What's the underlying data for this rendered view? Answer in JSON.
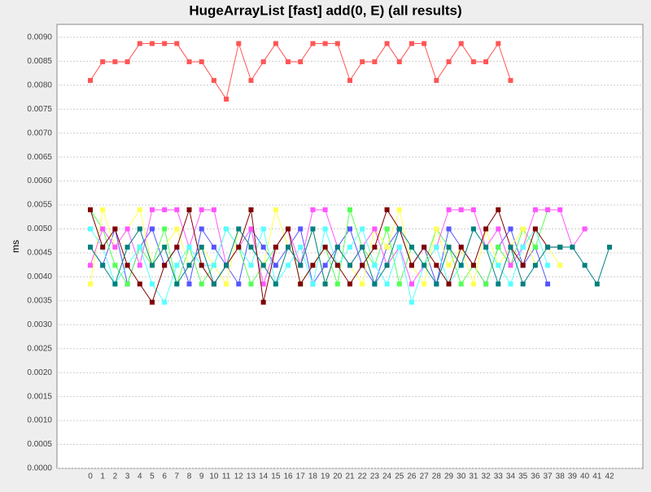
{
  "chart_data": {
    "type": "line",
    "title": "HugeArrayList [fast] add(0, E) (all results)",
    "y_label": "ms",
    "categories": [
      "0",
      "1",
      "2",
      "3",
      "4",
      "5",
      "6",
      "7",
      "8",
      "9",
      "10",
      "11",
      "12",
      "13",
      "14",
      "15",
      "16",
      "17",
      "18",
      "19",
      "20",
      "21",
      "22",
      "23",
      "24",
      "25",
      "26",
      "27",
      "28",
      "29",
      "30",
      "31",
      "32",
      "33",
      "34",
      "35",
      "36",
      "37",
      "38",
      "39",
      "40",
      "41",
      "42"
    ],
    "ylim": [
      0,
      0.00927
    ],
    "yticks": [
      {
        "value": 0,
        "label": "0.0000"
      },
      {
        "value": 0.0005,
        "label": "0.0005"
      },
      {
        "value": 0.001,
        "label": "0.0010"
      },
      {
        "value": 0.0015,
        "label": "0.0015"
      },
      {
        "value": 0.002,
        "label": "0.0020"
      },
      {
        "value": 0.0025,
        "label": "0.0025"
      },
      {
        "value": 0.003,
        "label": "0.0030"
      },
      {
        "value": 0.0035,
        "label": "0.0035"
      },
      {
        "value": 0.004,
        "label": "0.0040"
      },
      {
        "value": 0.0045,
        "label": "0.0045"
      },
      {
        "value": 0.005,
        "label": "0.0050"
      },
      {
        "value": 0.0055,
        "label": "0.0055"
      },
      {
        "value": 0.006,
        "label": "0.0060"
      },
      {
        "value": 0.0065,
        "label": "0.0065"
      },
      {
        "value": 0.007,
        "label": "0.0070"
      },
      {
        "value": 0.0075,
        "label": "0.0075"
      },
      {
        "value": 0.008,
        "label": "0.0080"
      },
      {
        "value": 0.0085,
        "label": "0.0085"
      },
      {
        "value": 0.009,
        "label": "0.0090"
      }
    ],
    "grid": true,
    "series": [
      {
        "color": "#ff5555",
        "values": [
          0.0081,
          0.00849,
          0.00849,
          0.00849,
          0.00887,
          0.00887,
          0.00887,
          0.00887,
          0.00849,
          0.00849,
          0.0081,
          0.00771,
          0.00887,
          0.0081,
          0.00849,
          0.00887,
          0.00849,
          0.00849,
          0.00887,
          0.00887,
          0.00887,
          0.0081,
          0.00849,
          0.00849,
          0.00887,
          0.00849,
          0.00887,
          0.00887,
          0.0081,
          0.00849,
          0.00887,
          0.00849,
          0.00849,
          0.00887,
          0.0081,
          null,
          null,
          null,
          null,
          null,
          null,
          null,
          null
        ]
      },
      {
        "color": "#5555ff",
        "values": [
          0.00462,
          0.00424,
          0.005,
          0.00385,
          0.00462,
          0.005,
          0.00424,
          0.00462,
          0.00385,
          0.005,
          0.00462,
          0.00424,
          0.00385,
          0.005,
          0.00462,
          0.00424,
          0.00462,
          0.005,
          0.00385,
          0.00424,
          0.00462,
          0.005,
          0.00424,
          0.00385,
          0.00462,
          0.005,
          0.00424,
          0.00462,
          0.00385,
          0.005,
          0.00462,
          0.00424,
          0.00385,
          0.00462,
          0.005,
          0.00424,
          0.00462,
          0.00385,
          null,
          null,
          null,
          null,
          null
        ]
      },
      {
        "color": "#55ff55",
        "values": [
          0.0054,
          0.005,
          0.00424,
          0.00385,
          0.00462,
          0.00424,
          0.005,
          0.00385,
          0.00462,
          0.00385,
          0.00424,
          0.005,
          0.00462,
          0.00385,
          0.00424,
          0.00462,
          0.005,
          0.00385,
          0.00424,
          0.00462,
          0.00385,
          0.0054,
          0.00462,
          0.00424,
          0.005,
          0.00385,
          0.00462,
          0.00424,
          0.005,
          0.00462,
          0.00385,
          0.00424,
          0.00385,
          0.00462,
          0.00424,
          0.005,
          0.00462,
          0.0054,
          null,
          null,
          null,
          null,
          null
        ]
      },
      {
        "color": "#ffff55",
        "values": [
          0.00385,
          0.0054,
          0.00462,
          0.005,
          0.0054,
          0.00424,
          0.00462,
          0.005,
          0.00424,
          0.00462,
          0.00424,
          0.00385,
          0.005,
          0.00462,
          0.00424,
          0.0054,
          0.00462,
          0.00424,
          0.005,
          0.00385,
          0.00462,
          0.00424,
          0.00385,
          0.005,
          0.00462,
          0.0054,
          0.00424,
          0.00385,
          0.005,
          0.00424,
          0.00462,
          0.00385,
          0.005,
          0.00424,
          0.00462,
          0.005,
          0.00424,
          0.00462,
          0.00424,
          null,
          null,
          null,
          null
        ]
      },
      {
        "color": "#ff55ff",
        "values": [
          0.00424,
          0.005,
          0.00462,
          0.005,
          0.00424,
          0.0054,
          0.0054,
          0.0054,
          0.00462,
          0.0054,
          0.0054,
          0.00424,
          0.00462,
          0.005,
          0.00385,
          0.00462,
          0.005,
          0.00424,
          0.0054,
          0.0054,
          0.00462,
          0.00424,
          0.00462,
          0.005,
          0.00424,
          0.00462,
          0.00385,
          0.00424,
          0.00462,
          0.0054,
          0.0054,
          0.0054,
          0.00462,
          0.005,
          0.00424,
          0.00462,
          0.0054,
          0.0054,
          0.0054,
          0.00462,
          0.005,
          null,
          null
        ]
      },
      {
        "color": "#55ffff",
        "values": [
          0.005,
          0.00462,
          0.00385,
          0.00424,
          0.00462,
          0.00385,
          0.00347,
          0.00424,
          0.00462,
          0.00424,
          0.00424,
          0.005,
          0.00462,
          0.00424,
          0.005,
          0.00385,
          0.00424,
          0.00462,
          0.00385,
          0.005,
          0.00424,
          0.00462,
          0.005,
          0.00424,
          0.00385,
          0.00462,
          0.00347,
          0.00424,
          0.00462,
          0.00385,
          0.00424,
          0.005,
          0.00462,
          0.00424,
          0.00385,
          0.00462,
          0.005,
          0.00424,
          null,
          null,
          null,
          null,
          null
        ]
      },
      {
        "color": "#800000",
        "values": [
          0.0054,
          0.00462,
          0.005,
          0.00424,
          0.00385,
          0.00347,
          0.00424,
          0.00462,
          0.0054,
          0.00424,
          0.00385,
          0.00424,
          0.00462,
          0.0054,
          0.00347,
          0.00462,
          0.005,
          0.00385,
          0.00424,
          0.00462,
          0.00424,
          0.00385,
          0.00424,
          0.00462,
          0.0054,
          0.005,
          0.00424,
          0.00462,
          0.00424,
          0.00385,
          0.00462,
          0.00424,
          0.005,
          0.0054,
          0.00462,
          0.00424,
          0.005,
          0.00462,
          0.00462,
          null,
          null,
          null,
          null
        ]
      },
      {
        "color": "#008080",
        "values": [
          0.00462,
          0.00424,
          0.00385,
          0.00462,
          0.005,
          0.00424,
          0.00462,
          0.00385,
          0.00424,
          0.00462,
          0.00385,
          0.00424,
          0.005,
          0.00462,
          0.00424,
          0.00385,
          0.00462,
          0.00424,
          0.005,
          0.00385,
          0.00462,
          0.00424,
          0.00462,
          0.00385,
          0.00424,
          0.005,
          0.00462,
          0.00424,
          0.00385,
          0.00462,
          0.00424,
          0.005,
          0.00462,
          0.00385,
          0.00462,
          0.00385,
          0.00424,
          0.00462,
          0.00462,
          0.00462,
          0.00424,
          0.00385,
          0.00462
        ]
      }
    ]
  }
}
